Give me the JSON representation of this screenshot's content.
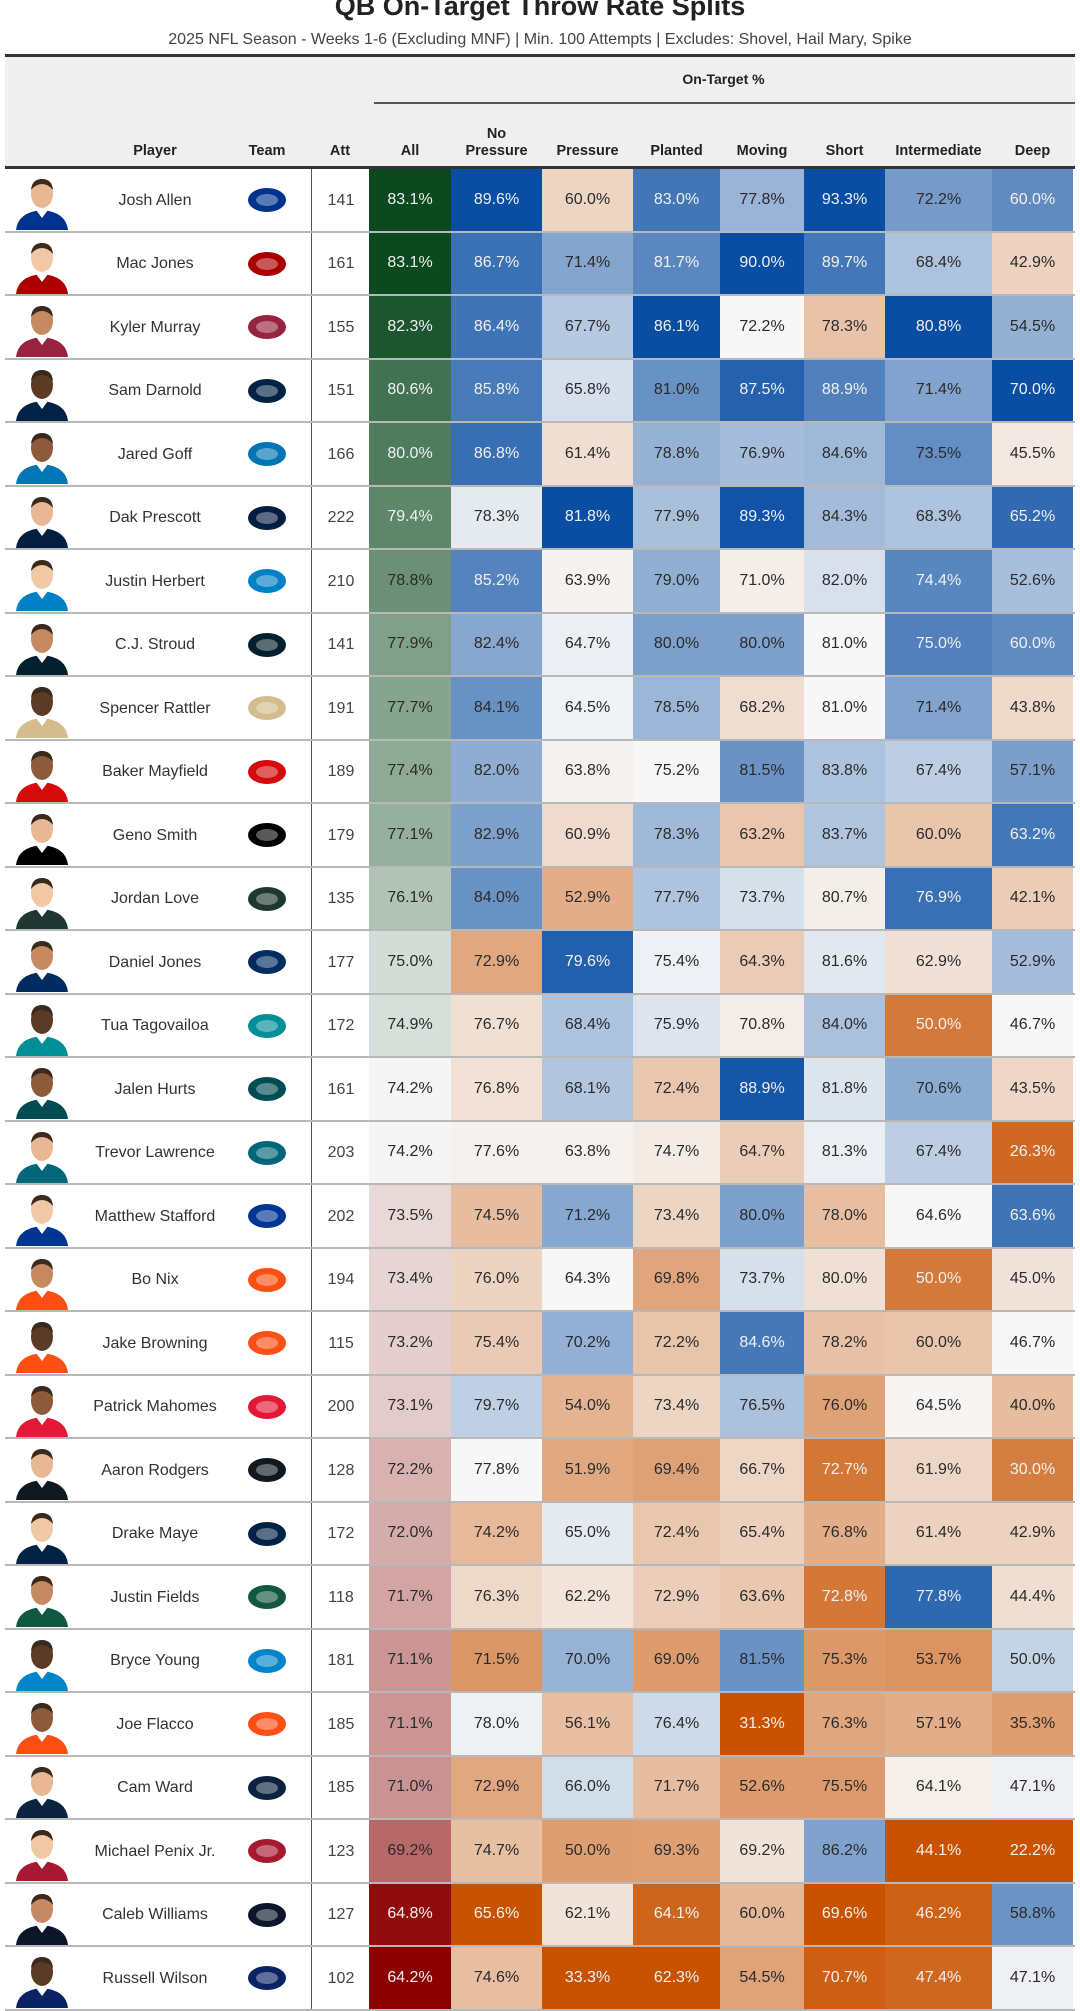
{
  "title": "QB On-Target Throw Rate Splits",
  "subtitle": "2025 NFL Season - Weeks 1-6 (Excluding MNF) | Min. 100 Attempts | Excludes: Shovel, Hail Mary, Spike",
  "chart_data": {
    "type": "table",
    "title": "QB On-Target Throw Rate Splits",
    "group_label": "On-Target %",
    "columns": [
      "Player",
      "Team",
      "Att",
      "All",
      "No Pressure",
      "Pressure",
      "Planted",
      "Moving",
      "Short",
      "Intermediate",
      "Deep"
    ],
    "column_header_lines": [
      [
        "Player"
      ],
      [
        "Team"
      ],
      [
        "Att"
      ],
      [
        "All"
      ],
      [
        "No",
        "Pressure"
      ],
      [
        "Pressure"
      ],
      [
        "Planted"
      ],
      [
        "Moving"
      ],
      [
        "Short"
      ],
      [
        "Intermediate"
      ],
      [
        "Deep"
      ]
    ],
    "color_scales": {
      "all": {
        "high": "#0b4a1f",
        "mid": "#f5f5f5",
        "low": "#8b0000"
      },
      "splits": {
        "high": "#0a4ea3",
        "mid": "#f7f7f7",
        "low": "#c85200"
      }
    },
    "rows": [
      {
        "player": "Josh Allen",
        "team_icon": "bills-logo",
        "team_color": "#00338d",
        "att": "141",
        "values": [
          83.1,
          89.6,
          60.0,
          83.0,
          77.8,
          93.3,
          72.2,
          60.0
        ],
        "labels": [
          "83.1%",
          "89.6%",
          "60.0%",
          "83.0%",
          "77.8%",
          "93.3%",
          "72.2%",
          "60.0%"
        ]
      },
      {
        "player": "Mac Jones",
        "team_icon": "49ers-logo",
        "team_color": "#aa0000",
        "att": "161",
        "values": [
          83.1,
          86.7,
          71.4,
          81.7,
          90.0,
          89.7,
          68.4,
          42.9
        ],
        "labels": [
          "83.1%",
          "86.7%",
          "71.4%",
          "81.7%",
          "90.0%",
          "89.7%",
          "68.4%",
          "42.9%"
        ]
      },
      {
        "player": "Kyler Murray",
        "team_icon": "cardinals-logo",
        "team_color": "#97233f",
        "att": "155",
        "values": [
          82.3,
          86.4,
          67.7,
          86.1,
          72.2,
          78.3,
          80.8,
          54.5
        ],
        "labels": [
          "82.3%",
          "86.4%",
          "67.7%",
          "86.1%",
          "72.2%",
          "78.3%",
          "80.8%",
          "54.5%"
        ]
      },
      {
        "player": "Sam Darnold",
        "team_icon": "seahawks-logo",
        "team_color": "#002244",
        "att": "151",
        "values": [
          80.6,
          85.8,
          65.8,
          81.0,
          87.5,
          88.9,
          71.4,
          70.0
        ],
        "labels": [
          "80.6%",
          "85.8%",
          "65.8%",
          "81.0%",
          "87.5%",
          "88.9%",
          "71.4%",
          "70.0%"
        ]
      },
      {
        "player": "Jared Goff",
        "team_icon": "lions-logo",
        "team_color": "#0076b6",
        "att": "166",
        "values": [
          80.0,
          86.8,
          61.4,
          78.8,
          76.9,
          84.6,
          73.5,
          45.5
        ],
        "labels": [
          "80.0%",
          "86.8%",
          "61.4%",
          "78.8%",
          "76.9%",
          "84.6%",
          "73.5%",
          "45.5%"
        ]
      },
      {
        "player": "Dak Prescott",
        "team_icon": "cowboys-logo",
        "team_color": "#041e42",
        "att": "222",
        "values": [
          79.4,
          78.3,
          81.8,
          77.9,
          89.3,
          84.3,
          68.3,
          65.2
        ],
        "labels": [
          "79.4%",
          "78.3%",
          "81.8%",
          "77.9%",
          "89.3%",
          "84.3%",
          "68.3%",
          "65.2%"
        ]
      },
      {
        "player": "Justin Herbert",
        "team_icon": "chargers-logo",
        "team_color": "#0080c6",
        "att": "210",
        "values": [
          78.8,
          85.2,
          63.9,
          79.0,
          71.0,
          82.0,
          74.4,
          52.6
        ],
        "labels": [
          "78.8%",
          "85.2%",
          "63.9%",
          "79.0%",
          "71.0%",
          "82.0%",
          "74.4%",
          "52.6%"
        ]
      },
      {
        "player": "C.J. Stroud",
        "team_icon": "texans-logo",
        "team_color": "#03202f",
        "att": "141",
        "values": [
          77.9,
          82.4,
          64.7,
          80.0,
          80.0,
          81.0,
          75.0,
          60.0
        ],
        "labels": [
          "77.9%",
          "82.4%",
          "64.7%",
          "80.0%",
          "80.0%",
          "81.0%",
          "75.0%",
          "60.0%"
        ]
      },
      {
        "player": "Spencer Rattler",
        "team_icon": "saints-logo",
        "team_color": "#d3bc8d",
        "att": "191",
        "values": [
          77.7,
          84.1,
          64.5,
          78.5,
          68.2,
          81.0,
          71.4,
          43.8
        ],
        "labels": [
          "77.7%",
          "84.1%",
          "64.5%",
          "78.5%",
          "68.2%",
          "81.0%",
          "71.4%",
          "43.8%"
        ]
      },
      {
        "player": "Baker Mayfield",
        "team_icon": "buccaneers-logo",
        "team_color": "#d50a0a",
        "att": "189",
        "values": [
          77.4,
          82.0,
          63.8,
          75.2,
          81.5,
          83.8,
          67.4,
          57.1
        ],
        "labels": [
          "77.4%",
          "82.0%",
          "63.8%",
          "75.2%",
          "81.5%",
          "83.8%",
          "67.4%",
          "57.1%"
        ]
      },
      {
        "player": "Geno Smith",
        "team_icon": "raiders-logo",
        "team_color": "#000000",
        "att": "179",
        "values": [
          77.1,
          82.9,
          60.9,
          78.3,
          63.2,
          83.7,
          60.0,
          63.2
        ],
        "labels": [
          "77.1%",
          "82.9%",
          "60.9%",
          "78.3%",
          "63.2%",
          "83.7%",
          "60.0%",
          "63.2%"
        ]
      },
      {
        "player": "Jordan Love",
        "team_icon": "packers-logo",
        "team_color": "#203731",
        "att": "135",
        "values": [
          76.1,
          84.0,
          52.9,
          77.7,
          73.7,
          80.7,
          76.9,
          42.1
        ],
        "labels": [
          "76.1%",
          "84.0%",
          "52.9%",
          "77.7%",
          "73.7%",
          "80.7%",
          "76.9%",
          "42.1%"
        ]
      },
      {
        "player": "Daniel Jones",
        "team_icon": "colts-logo",
        "team_color": "#002c5f",
        "att": "177",
        "values": [
          75.0,
          72.9,
          79.6,
          75.4,
          64.3,
          81.6,
          62.9,
          52.9
        ],
        "labels": [
          "75.0%",
          "72.9%",
          "79.6%",
          "75.4%",
          "64.3%",
          "81.6%",
          "62.9%",
          "52.9%"
        ]
      },
      {
        "player": "Tua Tagovailoa",
        "team_icon": "dolphins-logo",
        "team_color": "#008e97",
        "att": "172",
        "values": [
          74.9,
          76.7,
          68.4,
          75.9,
          70.8,
          84.0,
          50.0,
          46.7
        ],
        "labels": [
          "74.9%",
          "76.7%",
          "68.4%",
          "75.9%",
          "70.8%",
          "84.0%",
          "50.0%",
          "46.7%"
        ]
      },
      {
        "player": "Jalen Hurts",
        "team_icon": "eagles-logo",
        "team_color": "#004c54",
        "att": "161",
        "values": [
          74.2,
          76.8,
          68.1,
          72.4,
          88.9,
          81.8,
          70.6,
          43.5
        ],
        "labels": [
          "74.2%",
          "76.8%",
          "68.1%",
          "72.4%",
          "88.9%",
          "81.8%",
          "70.6%",
          "43.5%"
        ]
      },
      {
        "player": "Trevor Lawrence",
        "team_icon": "jaguars-logo",
        "team_color": "#006778",
        "att": "203",
        "values": [
          74.2,
          77.6,
          63.8,
          74.7,
          64.7,
          81.3,
          67.4,
          26.3
        ],
        "labels": [
          "74.2%",
          "77.6%",
          "63.8%",
          "74.7%",
          "64.7%",
          "81.3%",
          "67.4%",
          "26.3%"
        ]
      },
      {
        "player": "Matthew Stafford",
        "team_icon": "rams-logo",
        "team_color": "#003594",
        "att": "202",
        "values": [
          73.5,
          74.5,
          71.2,
          73.4,
          80.0,
          78.0,
          64.6,
          63.6
        ],
        "labels": [
          "73.5%",
          "74.5%",
          "71.2%",
          "73.4%",
          "80.0%",
          "78.0%",
          "64.6%",
          "63.6%"
        ]
      },
      {
        "player": "Bo Nix",
        "team_icon": "broncos-logo",
        "team_color": "#fb4f14",
        "att": "194",
        "values": [
          73.4,
          76.0,
          64.3,
          69.8,
          73.7,
          80.0,
          50.0,
          45.0
        ],
        "labels": [
          "73.4%",
          "76.0%",
          "64.3%",
          "69.8%",
          "73.7%",
          "80.0%",
          "50.0%",
          "45.0%"
        ]
      },
      {
        "player": "Jake Browning",
        "team_icon": "bengals-logo",
        "team_color": "#fb4f14",
        "att": "115",
        "values": [
          73.2,
          75.4,
          70.2,
          72.2,
          84.6,
          78.2,
          60.0,
          46.7
        ],
        "labels": [
          "73.2%",
          "75.4%",
          "70.2%",
          "72.2%",
          "84.6%",
          "78.2%",
          "60.0%",
          "46.7%"
        ]
      },
      {
        "player": "Patrick Mahomes",
        "team_icon": "chiefs-logo",
        "team_color": "#e31837",
        "att": "200",
        "values": [
          73.1,
          79.7,
          54.0,
          73.4,
          76.5,
          76.0,
          64.5,
          40.0
        ],
        "labels": [
          "73.1%",
          "79.7%",
          "54.0%",
          "73.4%",
          "76.5%",
          "76.0%",
          "64.5%",
          "40.0%"
        ]
      },
      {
        "player": "Aaron Rodgers",
        "team_icon": "steelers-logo",
        "team_color": "#101820",
        "att": "128",
        "values": [
          72.2,
          77.8,
          51.9,
          69.4,
          66.7,
          72.7,
          61.9,
          30.0
        ],
        "labels": [
          "72.2%",
          "77.8%",
          "51.9%",
          "69.4%",
          "66.7%",
          "72.7%",
          "61.9%",
          "30.0%"
        ]
      },
      {
        "player": "Drake Maye",
        "team_icon": "patriots-logo",
        "team_color": "#002244",
        "att": "172",
        "values": [
          72.0,
          74.2,
          65.0,
          72.4,
          65.4,
          76.8,
          61.4,
          42.9
        ],
        "labels": [
          "72.0%",
          "74.2%",
          "65.0%",
          "72.4%",
          "65.4%",
          "76.8%",
          "61.4%",
          "42.9%"
        ]
      },
      {
        "player": "Justin Fields",
        "team_icon": "jets-logo",
        "team_color": "#125740",
        "att": "118",
        "values": [
          71.7,
          76.3,
          62.2,
          72.9,
          63.6,
          72.8,
          77.8,
          44.4
        ],
        "labels": [
          "71.7%",
          "76.3%",
          "62.2%",
          "72.9%",
          "63.6%",
          "72.8%",
          "77.8%",
          "44.4%"
        ]
      },
      {
        "player": "Bryce Young",
        "team_icon": "panthers-logo",
        "team_color": "#0085ca",
        "att": "181",
        "values": [
          71.1,
          71.5,
          70.0,
          69.0,
          81.5,
          75.3,
          53.7,
          50.0
        ],
        "labels": [
          "71.1%",
          "71.5%",
          "70.0%",
          "69.0%",
          "81.5%",
          "75.3%",
          "53.7%",
          "50.0%"
        ]
      },
      {
        "player": "Joe Flacco",
        "team_icon": "bengals-logo",
        "team_color": "#fb4f14",
        "att": "185",
        "values": [
          71.1,
          78.0,
          56.1,
          76.4,
          31.3,
          76.3,
          57.1,
          35.3
        ],
        "labels": [
          "71.1%",
          "78.0%",
          "56.1%",
          "76.4%",
          "31.3%",
          "76.3%",
          "57.1%",
          "35.3%"
        ]
      },
      {
        "player": "Cam Ward",
        "team_icon": "titans-logo",
        "team_color": "#0c2340",
        "att": "185",
        "values": [
          71.0,
          72.9,
          66.0,
          71.7,
          52.6,
          75.5,
          64.1,
          47.1
        ],
        "labels": [
          "71.0%",
          "72.9%",
          "66.0%",
          "71.7%",
          "52.6%",
          "75.5%",
          "64.1%",
          "47.1%"
        ]
      },
      {
        "player": "Michael Penix Jr.",
        "team_icon": "falcons-logo",
        "team_color": "#a71930",
        "att": "123",
        "values": [
          69.2,
          74.7,
          50.0,
          69.3,
          69.2,
          86.2,
          44.1,
          22.2
        ],
        "labels": [
          "69.2%",
          "74.7%",
          "50.0%",
          "69.3%",
          "69.2%",
          "86.2%",
          "44.1%",
          "22.2%"
        ]
      },
      {
        "player": "Caleb Williams",
        "team_icon": "bears-logo",
        "team_color": "#0b162a",
        "att": "127",
        "values": [
          64.8,
          65.6,
          62.1,
          64.1,
          60.0,
          69.6,
          46.2,
          58.8
        ],
        "labels": [
          "64.8%",
          "65.6%",
          "62.1%",
          "64.1%",
          "60.0%",
          "69.6%",
          "46.2%",
          "58.8%"
        ]
      },
      {
        "player": "Russell Wilson",
        "team_icon": "giants-logo",
        "team_color": "#0b2265",
        "att": "102",
        "values": [
          64.2,
          74.6,
          33.3,
          62.3,
          54.5,
          70.7,
          47.4,
          47.1
        ],
        "labels": [
          "64.2%",
          "74.6%",
          "33.3%",
          "62.3%",
          "54.5%",
          "70.7%",
          "47.4%",
          "47.1%"
        ]
      }
    ]
  }
}
